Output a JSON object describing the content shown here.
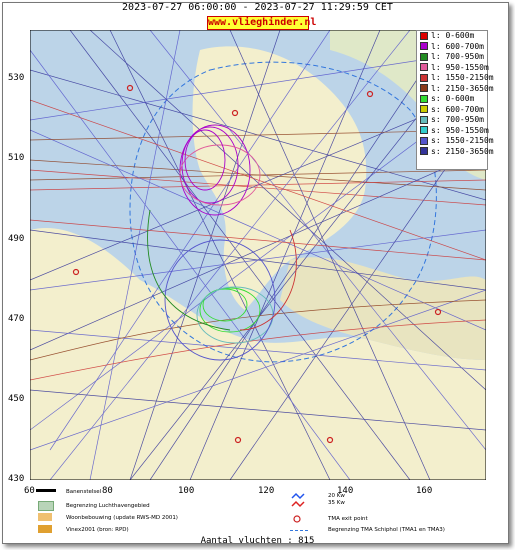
{
  "title": "2023-07-27 06:00:00 - 2023-07-27 11:29:59 CET",
  "site": "www.vlieghinder.nl",
  "y_ticks": [
    "530",
    "510",
    "490",
    "470",
    "450",
    "430"
  ],
  "x_ticks": [
    "60",
    "80",
    "100",
    "120",
    "140",
    "160"
  ],
  "legend": [
    {
      "label": "l: 0-600m",
      "color": "#dd0000"
    },
    {
      "label": "l: 600-700m",
      "color": "#aa00cc"
    },
    {
      "label": "l: 700-950m",
      "color": "#228b22"
    },
    {
      "label": "l: 950-1550m",
      "color": "#e05a9a"
    },
    {
      "label": "l: 1550-2150m",
      "color": "#cc3333"
    },
    {
      "label": "l: 2150-3650m",
      "color": "#8b3a1a"
    },
    {
      "label": "s: 0-600m",
      "color": "#33dd33"
    },
    {
      "label": "s: 600-700m",
      "color": "#cccc00"
    },
    {
      "label": "s: 700-950m",
      "color": "#66bbbb"
    },
    {
      "label": "s: 950-1550m",
      "color": "#33cccc"
    },
    {
      "label": "s: 1550-2150m",
      "color": "#5555cc"
    },
    {
      "label": "s: 2150-3650m",
      "color": "#333399"
    }
  ],
  "bottom_legend": {
    "runway": "Banenstelsel",
    "airport_boundary": "Begrenzing Luchthavengebied",
    "housing": "Woonbebouwing (update RWS-MD 2001)",
    "vinex": "Vinex2001 (bron: RPD)",
    "wind1": "20 Kw",
    "wind2": "35 Kw",
    "tma_exit": "TMA exit point",
    "tma_boundary": "Begrenzing TMA Schiphol  (TMA1 en TMA3)"
  },
  "footer": "Aantal vluchten : 815"
}
